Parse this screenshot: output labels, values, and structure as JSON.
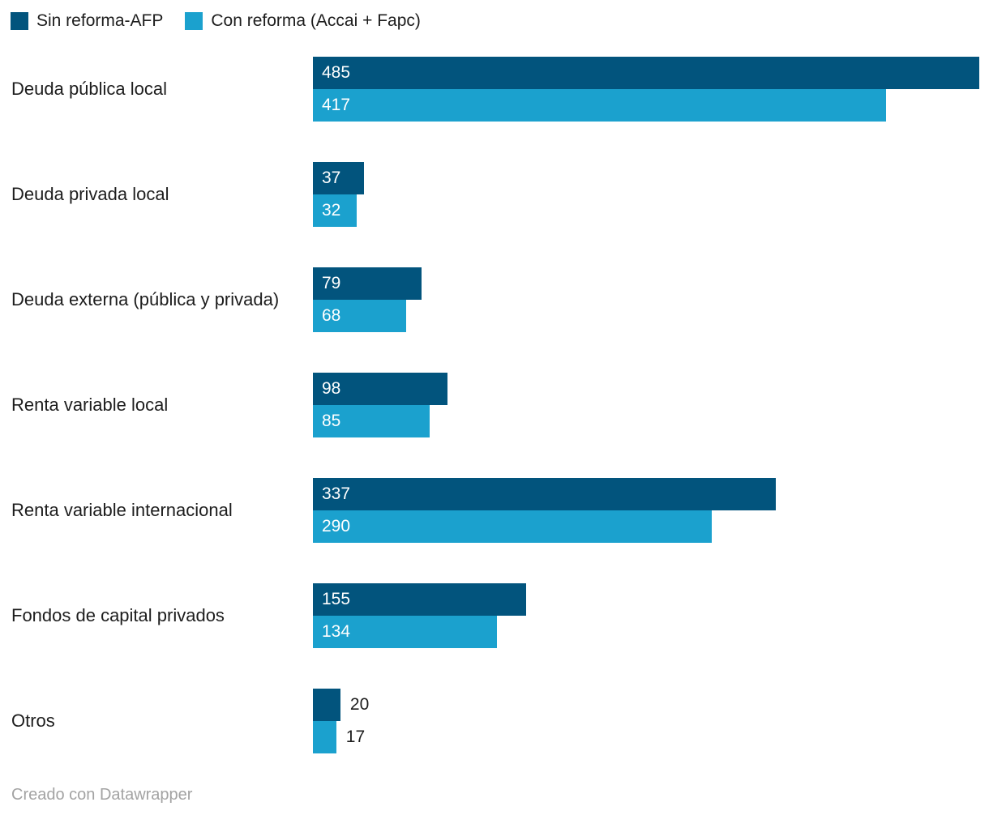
{
  "legend": {
    "items": [
      {
        "label": "Sin reforma-AFP",
        "color": "#02547d"
      },
      {
        "label": "Con reforma (Accai + Fapc)",
        "color": "#1ba1ce"
      }
    ]
  },
  "chart_data": {
    "type": "bar",
    "orientation": "horizontal",
    "title": "",
    "xlabel": "",
    "ylabel": "",
    "categories": [
      "Deuda pública local",
      "Deuda privada local",
      "Deuda externa (pública y privada)",
      "Renta variable local",
      "Renta variable internacional",
      "Fondos de capital privados",
      "Otros"
    ],
    "series": [
      {
        "name": "Sin reforma-AFP",
        "color": "#02547d",
        "values": [
          485,
          37,
          79,
          98,
          337,
          155,
          20
        ]
      },
      {
        "name": "Con reforma (Accai + Fapc)",
        "color": "#1ba1ce",
        "values": [
          417,
          32,
          68,
          85,
          290,
          134,
          17
        ]
      }
    ],
    "xlim": [
      0,
      492
    ],
    "grid": false,
    "legend_position": "top-left",
    "value_label_placement": "inside-start; outside for narrow bars",
    "value_label_color_inside": "#ffffff",
    "value_label_color_outside": "#1d1d1d"
  },
  "footer": {
    "text": "Creado con Datawrapper"
  }
}
